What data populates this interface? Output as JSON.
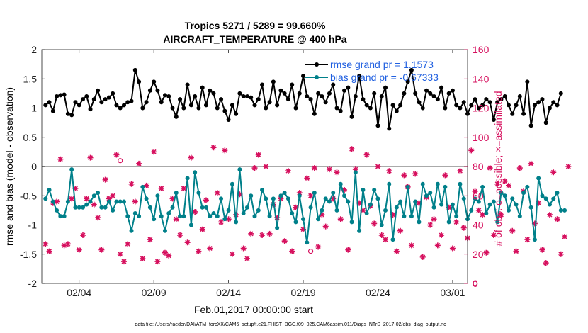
{
  "chart_data": {
    "type": "line",
    "title": "Tropics 5271 / 5289 = 99.660%",
    "subtitle": "AIRCRAFT_TEMPERATURE @ 400 hPa",
    "xlabel": "Feb.01,2017 00:00:00 start",
    "ylabel": "rmse and bias (model - observation)",
    "ylabel_right": "# of obs: o=possible; ×=assimilated",
    "xlim": [
      1,
      29.5
    ],
    "ylim": [
      -2,
      2
    ],
    "ylim_right": [
      0,
      160
    ],
    "xticks": [
      3.5,
      8.5,
      13.5,
      18.5,
      23.5,
      28.5
    ],
    "xtick_labels": [
      "02/04",
      "02/09",
      "02/14",
      "02/19",
      "02/24",
      "03/01"
    ],
    "yticks": [
      -2,
      -1.5,
      -1,
      -0.5,
      0,
      0.5,
      1,
      1.5,
      2
    ],
    "ytick_labels": [
      "-2",
      "-1.5",
      "-1",
      "-0.5",
      "0",
      "0.5",
      "1",
      "1.5",
      "2"
    ],
    "yticks_right": [
      0,
      20,
      40,
      60,
      80,
      100,
      120,
      140,
      160
    ],
    "ytick_labels_right": [
      "0",
      "20",
      "40",
      "60",
      "80",
      "100",
      "120",
      "140",
      "160"
    ],
    "zero_line": 0,
    "colors": {
      "rmse": "#000000",
      "bias": "#00808a",
      "obs": "#d6105e",
      "right_axis": "#d6105e",
      "legend_text": "#1f5fe0",
      "zero_line": "#aaaaaa"
    },
    "series": [
      {
        "name": "rmse grand pr = 1.1573",
        "axis": "left",
        "x_start": 1.25,
        "x_step": 0.25,
        "values": [
          1.05,
          1.1,
          0.95,
          1.2,
          1.22,
          1.23,
          0.9,
          0.88,
          1.1,
          1.05,
          1.15,
          1.2,
          0.98,
          1.15,
          1.3,
          1.1,
          1.15,
          1.18,
          1.25,
          1.05,
          1.0,
          1.05,
          1.1,
          1.12,
          1.65,
          1.45,
          1.0,
          1.1,
          1.3,
          1.45,
          1.3,
          1.1,
          1.22,
          1.2,
          1.0,
          0.85,
          1.15,
          1.0,
          1.4,
          1.05,
          1.2,
          1.0,
          1.35,
          1.05,
          1.3,
          1.25,
          1.0,
          1.15,
          0.95,
          0.8,
          1.05,
          0.9,
          1.25,
          1.2,
          1.2,
          1.18,
          1.05,
          1.15,
          1.4,
          1.0,
          1.1,
          1.45,
          1.05,
          1.3,
          1.25,
          1.15,
          1.4,
          1.0,
          1.25,
          1.55,
          1.2,
          1.15,
          0.9,
          1.25,
          1.2,
          1.1,
          1.25,
          1.4,
          1.0,
          0.95,
          1.3,
          1.35,
          0.85,
          1.2,
          1.55,
          1.15,
          1.05,
          1.0,
          1.25,
          0.7,
          1.2,
          1.35,
          0.65,
          1.05,
          0.95,
          1.05,
          1.25,
          1.45,
          1.65,
          1.25,
          1.1,
          1.0,
          1.3,
          1.25,
          1.2,
          1.15,
          1.35,
          1.0,
          1.25,
          1.3,
          1.05,
          1.0,
          1.1,
          0.9,
          1.05,
          1.15,
          1.0,
          1.05,
          1.15,
          1.1,
          0.8,
          1.1,
          1.15,
          1.2,
          1.05,
          0.9,
          1.05,
          1.2,
          0.9,
          1.45,
          0.7,
          1.05,
          1.1,
          1.15,
          0.75,
          1.0,
          1.1,
          1.05,
          1.25
        ]
      },
      {
        "name": "bias grand pr = -0.67333",
        "axis": "left",
        "x_start": 1.25,
        "x_step": 0.25,
        "values": [
          -0.55,
          -0.4,
          -0.6,
          -0.75,
          -0.85,
          -0.85,
          -0.6,
          -0.05,
          -0.7,
          -0.7,
          -0.7,
          -0.65,
          -0.6,
          -0.5,
          -0.45,
          -0.7,
          -0.7,
          -0.6,
          -0.75,
          -0.6,
          -0.6,
          -0.6,
          -0.85,
          -1.1,
          -0.8,
          -0.85,
          -0.35,
          -0.55,
          -0.7,
          -0.9,
          -0.5,
          -0.85,
          -1.1,
          -0.8,
          -0.7,
          -0.45,
          -0.85,
          -0.85,
          -0.2,
          -1.0,
          -0.1,
          -0.45,
          -0.7,
          -0.7,
          -0.85,
          -0.8,
          -0.85,
          -0.55,
          -0.9,
          -0.75,
          -0.3,
          -0.95,
          -0.05,
          -0.8,
          -0.7,
          -0.5,
          -0.85,
          -0.75,
          -0.4,
          -0.55,
          -0.85,
          -0.55,
          -1.05,
          -0.5,
          -0.45,
          -0.55,
          -0.8,
          -0.95,
          -0.5,
          -0.9,
          -1.3,
          -0.7,
          -0.45,
          -0.9,
          -0.75,
          -0.55,
          -0.6,
          -0.45,
          -0.75,
          -0.3,
          -0.5,
          -0.6,
          -0.95,
          -0.1,
          -1.1,
          -0.4,
          -0.8,
          -0.65,
          -0.4,
          -0.55,
          -1.0,
          -0.75,
          -0.3,
          -1.25,
          -0.7,
          -0.6,
          -0.85,
          -0.35,
          -0.85,
          -0.6,
          -0.95,
          -0.3,
          -0.5,
          -0.45,
          -0.7,
          -0.3,
          -0.65,
          -0.35,
          -0.95,
          -0.65,
          -0.85,
          -0.3,
          -0.55,
          -0.9,
          -0.75,
          -0.55,
          -0.6,
          -0.35,
          -0.8,
          -0.65,
          -0.6,
          -0.95,
          -0.45,
          -0.5,
          -0.75,
          -0.55,
          -0.65,
          -0.85,
          -0.45,
          -0.35,
          -0.7,
          -1.25,
          -0.2,
          -0.5,
          -0.55,
          -0.65,
          -0.55,
          -0.45,
          -0.75,
          -0.75
        ]
      },
      {
        "name": "# of obs assimilated",
        "axis": "right",
        "marker": "x",
        "x_start": 1.25,
        "x_step": 0.25,
        "values": [
          27,
          22,
          55,
          56,
          85,
          26,
          27,
          58,
          65,
          23,
          33,
          58,
          86,
          54,
          45,
          23,
          71,
          58,
          60,
          88,
          20,
          15,
          27,
          68,
          56,
          82,
          17,
          67,
          30,
          90,
          15,
          65,
          21,
          19,
          58,
          44,
          33,
          65,
          28,
          86,
          49,
          22,
          37,
          57,
          24,
          93,
          62,
          42,
          91,
          44,
          20,
          47,
          61,
          24,
          17,
          34,
          79,
          88,
          33,
          80,
          34,
          54,
          45,
          58,
          29,
          77,
          22,
          52,
          62,
          37,
          72,
          60,
          79,
          25,
          47,
          39,
          78,
          58,
          76,
          44,
          64,
          23,
          92,
          78,
          55,
          50,
          88,
          53,
          41,
          80,
          33,
          30,
          77,
          47,
          22,
          36,
          74,
          66,
          26,
          75,
          55,
          18,
          59,
          40,
          44,
          26,
          33,
          74,
          52,
          24,
          42,
          77,
          38,
          31,
          91,
          63,
          50,
          47,
          21,
          79,
          33,
          68,
          47,
          70,
          67,
          36,
          22,
          79,
          63,
          30,
          82,
          41,
          55,
          23,
          14,
          47,
          76,
          44,
          20,
          32,
          80
        ]
      }
    ],
    "possible_extra": [
      {
        "x": 6.25,
        "y": 84
      },
      {
        "x": 19.0,
        "y": 22
      },
      {
        "x": 30.0,
        "y": 0
      }
    ],
    "legend": [
      "rmse grand pr = 1.1573",
      "bias grand pr = -0.67333"
    ],
    "legend_position": "top-right",
    "footnote": "data file: /Users/raeder/DAI/ATM_forcXX/CAM6_setup/f.e21.FHIST_BGC.f09_025.CAM6assim.011/Diags_NTrS_2017-02/obs_diag_output.nc"
  }
}
